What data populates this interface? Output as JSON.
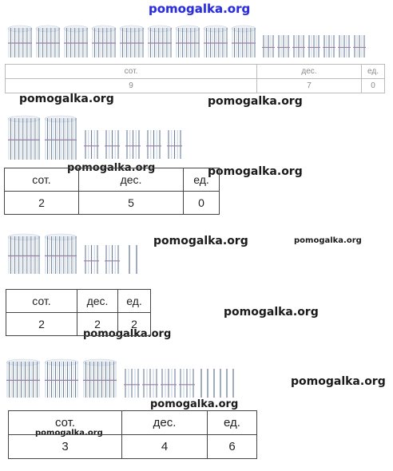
{
  "watermark": "pomogalka.org",
  "tables": [
    {
      "headers": [
        "сот.",
        "дес.",
        "ед."
      ],
      "values": [
        "9",
        "7",
        "0"
      ]
    },
    {
      "headers": [
        "сот.",
        "дес.",
        "ед."
      ],
      "values": [
        "2",
        "5",
        "0"
      ]
    },
    {
      "headers": [
        "сот.",
        "дес.",
        "ед."
      ],
      "values": [
        "2",
        "2",
        "2"
      ]
    },
    {
      "headers": [
        "сот.",
        "дес.",
        "ед."
      ],
      "values": [
        "3",
        "4",
        "6"
      ]
    }
  ],
  "groups": [
    {
      "hundreds": 9,
      "tens": 7,
      "ones": 0
    },
    {
      "hundreds": 2,
      "tens": 5,
      "ones": 0
    },
    {
      "hundreds": 2,
      "tens": 2,
      "ones": 2
    },
    {
      "hundreds": 3,
      "tens": 4,
      "ones": 6
    }
  ],
  "colors": {
    "stick": "#6a7f9a",
    "stick_light": "#c9d3df",
    "band": "#9a7fa6",
    "watermark_top": "#2d2fd6"
  }
}
